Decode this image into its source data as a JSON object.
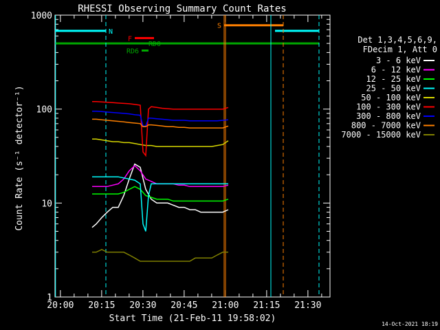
{
  "chart_data": {
    "type": "line",
    "title": "RHESSI Observing Summary Count Rates",
    "xlabel": "Start Time (21-Feb-11 19:58:02)",
    "ylabel": "Count Rate (s⁻¹ detector⁻¹)",
    "y_scale": "log",
    "ylim": [
      1,
      1000
    ],
    "xlim_minutes_after_19_58_02": [
      0,
      100
    ],
    "x_tick_labels": [
      "20:00",
      "20:15",
      "20:30",
      "20:45",
      "21:00",
      "21:15",
      "21:30"
    ],
    "y_tick_labels": [
      "1",
      "10",
      "100",
      "1000"
    ],
    "footer_date": "14-Oct-2021 18:19",
    "legend": {
      "header": [
        "Det 1,3,4,5,6,9,",
        "FDecim 1, Att 0"
      ],
      "entries": [
        {
          "label": "3 - 6 keV",
          "color": "#ffffff"
        },
        {
          "label": "6 - 12 keV",
          "color": "#ff00ff"
        },
        {
          "label": "12 - 25 keV",
          "color": "#00ff00"
        },
        {
          "label": "25 - 50 keV",
          "color": "#00ffff"
        },
        {
          "label": "50 - 100 keV",
          "color": "#d8d800"
        },
        {
          "label": "100 - 300 keV",
          "color": "#ff0000"
        },
        {
          "label": "300 - 800 keV",
          "color": "#0000ff"
        },
        {
          "label": "800 - 7000 keV",
          "color": "#ff8000"
        },
        {
          "label": "7000 - 15000 keV",
          "color": "#808000"
        }
      ]
    },
    "series": [
      {
        "name": "3 - 6 keV",
        "color": "#ffffff",
        "x": [
          13.5,
          15,
          17,
          19,
          21,
          23,
          25,
          27,
          29,
          31,
          33,
          35,
          37,
          39,
          41,
          43,
          45,
          47,
          49,
          51,
          53,
          55,
          57,
          59,
          61,
          63
        ],
        "y": [
          5.5,
          6,
          7,
          8,
          9,
          9,
          12,
          18,
          26,
          24,
          14,
          11,
          10,
          10,
          10,
          9.5,
          9,
          9,
          8.5,
          8.5,
          8,
          8,
          8,
          8,
          8,
          8.5
        ]
      },
      {
        "name": "6 - 12 keV",
        "color": "#ff00ff",
        "x": [
          13.5,
          15,
          17,
          19,
          21,
          23,
          25,
          27,
          29,
          31,
          33,
          35,
          37,
          39,
          41,
          43,
          45,
          47,
          49,
          51,
          53,
          55,
          57,
          59,
          61,
          63
        ],
        "y": [
          15,
          15,
          15,
          15,
          15.5,
          16,
          18,
          22,
          25,
          22,
          18,
          17,
          16,
          16,
          16,
          16,
          15.5,
          15.5,
          15,
          15,
          15,
          15,
          15,
          15,
          15,
          15.5
        ]
      },
      {
        "name": "12 - 25 keV",
        "color": "#00ff00",
        "x": [
          13.5,
          15,
          17,
          19,
          21,
          23,
          25,
          27,
          29,
          31,
          33,
          35,
          37,
          39,
          41,
          43,
          45,
          47,
          49,
          51,
          53,
          55,
          57,
          59,
          61,
          63
        ],
        "y": [
          12.5,
          12.5,
          12.5,
          12.5,
          12.5,
          12.5,
          13,
          14,
          15,
          14,
          12,
          11.5,
          11,
          11,
          11,
          10.5,
          10.5,
          10.5,
          10.5,
          10.5,
          10.5,
          10.5,
          10.5,
          10.5,
          10.5,
          11
        ]
      },
      {
        "name": "25 - 50 keV",
        "color": "#00ffff",
        "x": [
          13.5,
          15,
          17,
          19,
          21,
          23,
          25,
          27,
          29,
          31,
          32,
          33,
          34,
          35,
          37,
          39,
          41,
          43,
          45,
          47,
          49,
          51,
          53,
          55,
          57,
          59,
          61,
          63
        ],
        "y": [
          19,
          19,
          19,
          19,
          19,
          19,
          18.5,
          18,
          17.5,
          16,
          6,
          5,
          12,
          16,
          16,
          16,
          16,
          16,
          16,
          16,
          16,
          16,
          16,
          16,
          16,
          16,
          16,
          16
        ]
      },
      {
        "name": "50 - 100 keV",
        "color": "#d8d800",
        "x": [
          13.5,
          15,
          17,
          19,
          21,
          23,
          25,
          27,
          29,
          31,
          33,
          35,
          37,
          39,
          41,
          43,
          45,
          47,
          49,
          51,
          53,
          55,
          57,
          59,
          61,
          63
        ],
        "y": [
          48,
          48,
          47,
          46,
          45,
          45,
          44,
          44,
          43,
          42,
          41,
          41,
          40,
          40,
          40,
          40,
          40,
          40,
          40,
          40,
          40,
          40,
          40,
          41,
          42,
          46
        ]
      },
      {
        "name": "100 - 300 keV",
        "color": "#ff0000",
        "x": [
          13.5,
          15,
          17,
          19,
          21,
          23,
          25,
          27,
          29,
          31,
          32,
          33,
          34,
          35,
          37,
          39,
          41,
          43,
          45,
          47,
          49,
          51,
          53,
          55,
          57,
          59,
          61,
          63
        ],
        "y": [
          120,
          120,
          119,
          118,
          117,
          116,
          115,
          114,
          112,
          110,
          35,
          32,
          100,
          106,
          104,
          102,
          101,
          100,
          100,
          100,
          100,
          100,
          100,
          100,
          100,
          100,
          100,
          104
        ]
      },
      {
        "name": "300 - 800 keV",
        "color": "#0000ff",
        "x": [
          13.5,
          15,
          17,
          19,
          21,
          23,
          25,
          27,
          29,
          31,
          32,
          33,
          34,
          35,
          37,
          39,
          41,
          43,
          45,
          47,
          49,
          51,
          53,
          55,
          57,
          59,
          61,
          63
        ],
        "y": [
          95,
          95,
          94,
          93,
          92,
          91,
          90,
          89,
          87,
          86,
          66,
          66,
          80,
          80,
          79,
          78,
          77,
          76,
          76,
          76,
          75,
          75,
          75,
          75,
          75,
          75,
          76,
          77
        ]
      },
      {
        "name": "800 - 7000 keV",
        "color": "#ff8000",
        "x": [
          13.5,
          15,
          17,
          19,
          21,
          23,
          25,
          27,
          29,
          31,
          32,
          33,
          34,
          35,
          37,
          39,
          41,
          43,
          45,
          47,
          49,
          51,
          53,
          55,
          57,
          59,
          61,
          63
        ],
        "y": [
          78,
          78,
          77,
          76,
          75,
          74,
          73,
          72,
          71,
          70,
          65,
          65,
          68,
          68,
          67,
          66,
          65,
          65,
          64,
          64,
          63,
          63,
          63,
          63,
          63,
          63,
          63,
          66
        ]
      },
      {
        "name": "7000 - 15000 keV",
        "color": "#808000",
        "x": [
          13.5,
          15,
          17,
          19,
          21,
          23,
          25,
          27,
          29,
          31,
          33,
          35,
          37,
          39,
          41,
          43,
          45,
          47,
          49,
          51,
          53,
          55,
          57,
          59,
          61,
          63
        ],
        "y": [
          3,
          3,
          3.2,
          3,
          3,
          3,
          3,
          2.8,
          2.6,
          2.4,
          2.4,
          2.4,
          2.4,
          2.4,
          2.4,
          2.4,
          2.4,
          2.4,
          2.4,
          2.6,
          2.6,
          2.6,
          2.6,
          2.8,
          3,
          3
        ]
      }
    ],
    "flags": [
      {
        "label": "N",
        "color": "#00ffff",
        "segments": [
          [
            0,
            18.5
          ],
          [
            80,
            96
          ]
        ],
        "y": 680
      },
      {
        "label": "S",
        "color": "#ff8000",
        "segments": [
          [
            61.5,
            83
          ]
        ],
        "y": 780
      },
      {
        "label": "F",
        "color": "#ff0000",
        "segments": [
          [
            29,
            36
          ]
        ],
        "y": 570
      },
      {
        "label": "RD0",
        "color": "#00aa00",
        "segments": [
          [
            0,
            96
          ]
        ],
        "y": 500
      },
      {
        "label": "RD6",
        "color": "#00aa00",
        "segments": [
          [
            31.5,
            34
          ]
        ],
        "y": 420
      }
    ]
  }
}
